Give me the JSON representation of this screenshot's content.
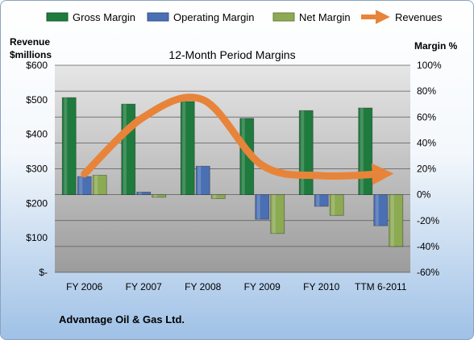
{
  "company": "Advantage Oil & Gas Ltd.",
  "chart_data": {
    "type": "bar",
    "title": "12-Month Period Margins",
    "categories": [
      "FY 2006",
      "FY 2007",
      "FY 2008",
      "FY 2009",
      "FY 2010",
      "TTM 6-2011"
    ],
    "y_left": {
      "label_line1": "Revenue",
      "label_line2": "$millions",
      "range": [
        0,
        600
      ],
      "ticks": [
        "$-",
        "$100",
        "$200",
        "$300",
        "$400",
        "$500",
        "$600"
      ]
    },
    "y_right": {
      "label": "Margin %",
      "range": [
        -60,
        100
      ],
      "ticks": [
        "-60%",
        "-40%",
        "-20%",
        "0%",
        "20%",
        "40%",
        "60%",
        "80%",
        "100%"
      ]
    },
    "legend_position": "top",
    "series": [
      {
        "name": "Gross Margin",
        "kind": "bar",
        "axis": "right",
        "color": "#1f7a3e",
        "values": [
          75,
          70,
          72,
          59,
          65,
          67
        ]
      },
      {
        "name": "Operating Margin",
        "kind": "bar",
        "axis": "right",
        "color": "#4a6fb3",
        "values": [
          14,
          2,
          22,
          -19,
          -9,
          -24
        ]
      },
      {
        "name": "Net Margin",
        "kind": "bar",
        "axis": "right",
        "color": "#8caa52",
        "values": [
          15,
          -2,
          -3,
          -30,
          -16,
          -40
        ]
      },
      {
        "name": "Revenues",
        "kind": "line",
        "axis": "left",
        "color": "#e8843a",
        "values": [
          285,
          450,
          500,
          310,
          280,
          285
        ]
      }
    ]
  }
}
